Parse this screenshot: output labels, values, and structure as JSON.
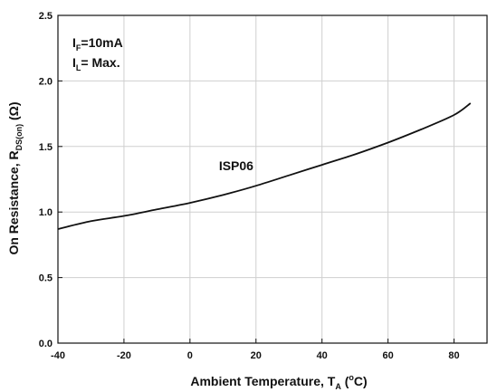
{
  "chart_data": {
    "type": "line",
    "x_tick_labels": [
      "-40",
      "-20",
      "0",
      "20",
      "40",
      "60",
      "80"
    ],
    "y_tick_labels": [
      "0.0",
      "0.5",
      "1.0",
      "1.5",
      "2.0",
      "2.5"
    ],
    "xlim": [
      -40,
      90
    ],
    "ylim": [
      0,
      2.5
    ],
    "grid": true,
    "xlabel": {
      "main": "Ambient Temperature, T",
      "sub": "A",
      "mid": " (",
      "sup": "o",
      "end": "C)"
    },
    "ylabel": {
      "main": "On Resistance, R",
      "sub": "DS(on)",
      "end": " (Ω)"
    },
    "conditions": [
      {
        "main": "I",
        "sub": "F",
        "rest": "=10mA"
      },
      {
        "main": "I",
        "sub": "L",
        "rest": "= Max."
      }
    ],
    "series": [
      {
        "name": "ISP06",
        "x": [
          -40,
          -30,
          -20,
          -10,
          0,
          10,
          20,
          30,
          40,
          50,
          60,
          70,
          80,
          85
        ],
        "y": [
          0.87,
          0.93,
          0.97,
          1.02,
          1.07,
          1.13,
          1.2,
          1.28,
          1.36,
          1.44,
          1.53,
          1.63,
          1.74,
          1.83
        ]
      }
    ]
  }
}
